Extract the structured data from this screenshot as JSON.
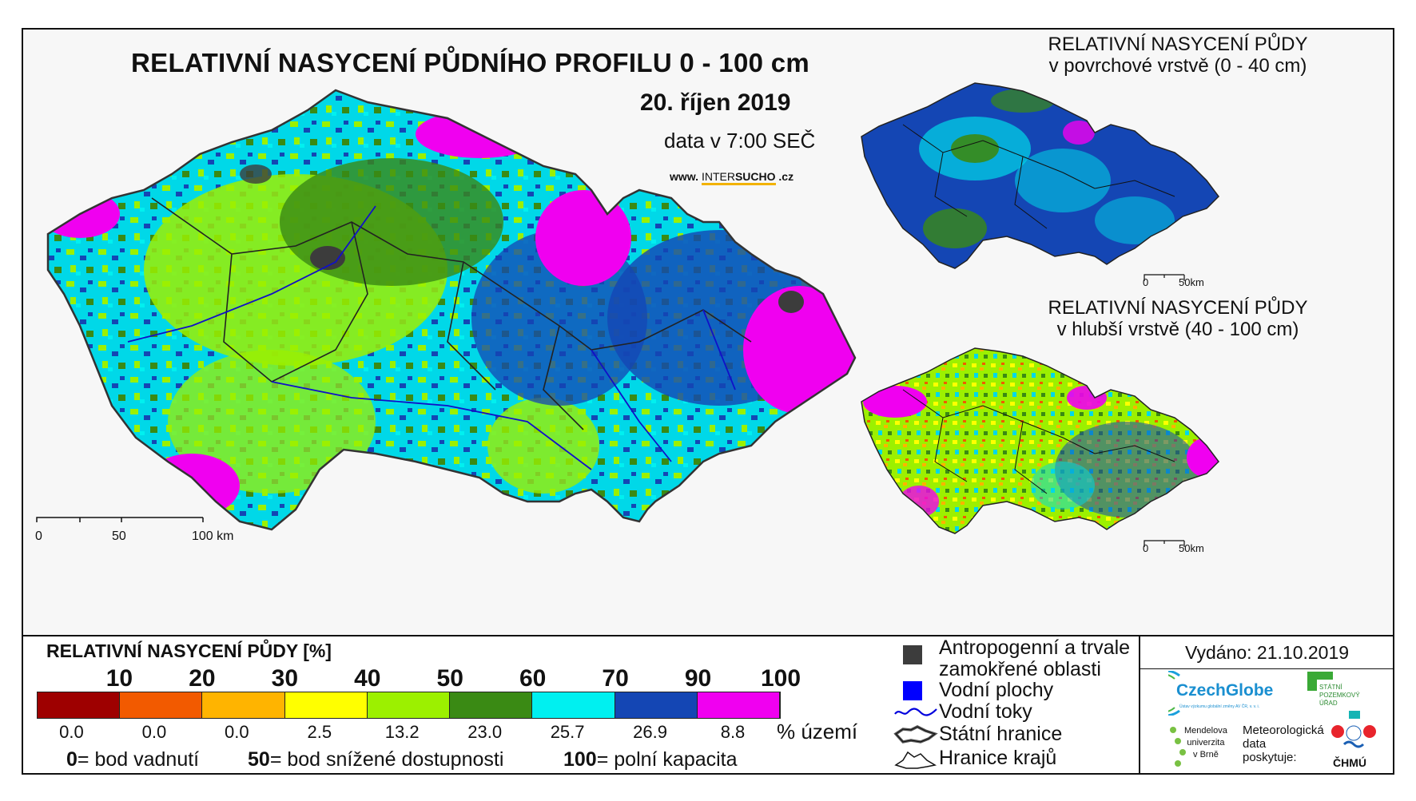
{
  "header": {
    "title": "RELATIVNÍ NASYCENÍ PŮDNÍHO PROFILU 0 - 100 cm",
    "date": "20. říjen 2019",
    "time": "data v 7:00 SEČ",
    "website_prefix": "www.",
    "website_inter": "INTER",
    "website_sucho": "SUCHO",
    "website_suffix": ".cz"
  },
  "inset_top": {
    "title_line1": "RELATIVNÍ NASYCENÍ PŮDY",
    "title_line2": "v povrchové vrstvě (0 - 40 cm)",
    "scale_start": "0",
    "scale_end": "50km"
  },
  "inset_bottom": {
    "title_line1": "RELATIVNÍ NASYCENÍ PŮDY",
    "title_line2": "v hlubší vrstvě (40 - 100 cm)",
    "scale_start": "0",
    "scale_end": "50km"
  },
  "main_scale": {
    "label_0": "0",
    "label_50": "50",
    "label_100": "100 km"
  },
  "legend": {
    "title": "RELATIVNÍ NASYCENÍ PŮDY [%]",
    "ticks": [
      "10",
      "20",
      "30",
      "40",
      "50",
      "60",
      "70",
      "90",
      "100"
    ],
    "classes": [
      {
        "color": "#9e0000",
        "percent": "0.0"
      },
      {
        "color": "#f25a00",
        "percent": "0.0"
      },
      {
        "color": "#ffb400",
        "percent": "0.0"
      },
      {
        "color": "#ffff00",
        "percent": "2.5"
      },
      {
        "color": "#9cf000",
        "percent": "13.2"
      },
      {
        "color": "#3a8a14",
        "percent": "23.0"
      },
      {
        "color": "#00f0f0",
        "percent": "25.7"
      },
      {
        "color": "#1446b4",
        "percent": "26.9"
      },
      {
        "color": "#f000f0",
        "percent": "8.8"
      }
    ],
    "unit_label": "% území",
    "def_0_num": "0",
    "def_0_text": "= bod vadnutí",
    "def_50_num": "50",
    "def_50_text": "= bod snížené dostupnosti",
    "def_100_num": "100",
    "def_100_text": "= polní kapacita"
  },
  "symbols": {
    "antropogenni_line1": "Antropogenní a trvale",
    "antropogenni_line2": "zamokřené oblasti",
    "vodni_plochy": "Vodní plochy",
    "vodni_toky": "Vodní toky",
    "statni_hranice": "Státní hranice",
    "hranice_kraju": "Hranice krajů",
    "antropogenni_color": "#3c3c3c",
    "vodni_plochy_color": "#0000ff"
  },
  "footer": {
    "vydano": "Vydáno: 21.10.2019",
    "czechglobe": "CzechGlobe",
    "czechglobe_sub": "Ústav výzkumu globální změny AV ČR, v. v. i.",
    "spu_line1": "STÁTNÍ",
    "spu_line2": "POZEMKOVÝ",
    "spu_line3": "ÚŘAD",
    "mendel_line1": "Mendelova",
    "mendel_line2": "univerzita",
    "mendel_line3": "v Brně",
    "meteo_line1": "Meteorologická",
    "meteo_line2": "data",
    "meteo_line3": "poskytuje:",
    "chmu": "ČHMÚ"
  }
}
